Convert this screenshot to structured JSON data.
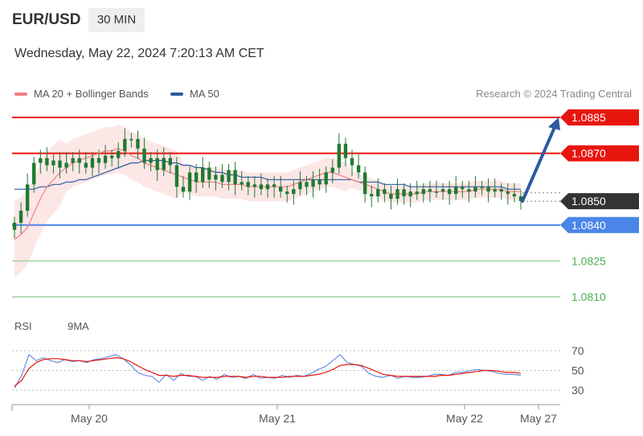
{
  "header": {
    "symbol": "EUR/USD",
    "timeframe": "30 MIN",
    "datetime": "Wednesday, May 22, 2024 7:20:13 AM CET",
    "credit": "Research © 2024 Trading Central"
  },
  "legend": {
    "ma20": "MA 20 + Bollinger Bands",
    "ma50": "MA 50",
    "rsi": "RSI",
    "rsi_ma": "9MA"
  },
  "colors": {
    "ma20": "#f08080",
    "ma50": "#2d5aa0",
    "bands_fill": "#fde3e3",
    "resistance": "#e8150f",
    "support": "#4a86e8",
    "target_green": "#4caf50",
    "last_price": "#333333",
    "arrow": "#2d5aa0",
    "candle": "#1f7a2f",
    "rsi": "#6a8fe0",
    "rsi_ma": "#e8150f"
  },
  "chart_data": [
    {
      "type": "candlestick",
      "title": "",
      "x_labels": [
        "May 20",
        "May 21",
        "May 22",
        "May 27"
      ],
      "ylim": [
        1.08,
        1.0895
      ],
      "levels": [
        {
          "label": "1.0885",
          "value": 1.0885,
          "kind": "resistance"
        },
        {
          "label": "1.0870",
          "value": 1.087,
          "kind": "resistance"
        },
        {
          "label": "1.0850",
          "value": 1.085,
          "kind": "last"
        },
        {
          "label": "1.0840",
          "value": 1.084,
          "kind": "support"
        },
        {
          "label": "1.0825",
          "value": 1.0825,
          "kind": "target"
        },
        {
          "label": "1.0810",
          "value": 1.081,
          "kind": "target"
        }
      ],
      "close": [
        1.0841,
        1.0846,
        1.0857,
        1.0866,
        1.0868,
        1.0865,
        1.0867,
        1.0864,
        1.0866,
        1.0868,
        1.0866,
        1.0864,
        1.0868,
        1.0866,
        1.0869,
        1.0868,
        1.0871,
        1.0876,
        1.0876,
        1.0872,
        1.0866,
        1.0868,
        1.0863,
        1.0868,
        1.0865,
        1.0856,
        1.0854,
        1.0862,
        1.0858,
        1.0864,
        1.0859,
        1.0861,
        1.0858,
        1.0863,
        1.0857,
        1.0858,
        1.0856,
        1.0857,
        1.0855,
        1.0857,
        1.0856,
        1.0854,
        1.0853,
        1.0855,
        1.0858,
        1.0856,
        1.0859,
        1.0857,
        1.0862,
        1.0864,
        1.0874,
        1.0868,
        1.0865,
        1.0862,
        1.0853,
        1.0852,
        1.0855,
        1.0853,
        1.0851,
        1.0855,
        1.0852,
        1.0854,
        1.0853,
        1.0855,
        1.0854,
        1.0854,
        1.0855,
        1.0853,
        1.0856,
        1.0855,
        1.0854,
        1.0856,
        1.0856,
        1.0854,
        1.0855,
        1.0854,
        1.0853,
        1.0852,
        1.085
      ],
      "ma20": [
        1.0834,
        1.0836,
        1.0839,
        1.0845,
        1.0851,
        1.0856,
        1.0859,
        1.0862,
        1.0864,
        1.0866,
        1.0867,
        1.0868,
        1.0869,
        1.087,
        1.0871,
        1.0871,
        1.0872,
        1.0871,
        1.0869,
        1.0868,
        1.0866,
        1.0865,
        1.0864,
        1.0863,
        1.0862,
        1.0861,
        1.086,
        1.0859,
        1.0858,
        1.0858,
        1.0858,
        1.0858,
        1.0857,
        1.0857,
        1.0857,
        1.0857,
        1.0856,
        1.0856,
        1.0856,
        1.0856,
        1.0856,
        1.0856,
        1.0856,
        1.0857,
        1.0858,
        1.0859,
        1.086,
        1.0861,
        1.0862,
        1.0862,
        1.0861,
        1.086,
        1.0859,
        1.0858,
        1.0857,
        1.0856,
        1.0855,
        1.0854,
        1.0853,
        1.0853,
        1.0853,
        1.0853,
        1.0853,
        1.0854,
        1.0854,
        1.0854,
        1.0854,
        1.0854,
        1.0854,
        1.0854,
        1.0854,
        1.0855,
        1.0855,
        1.0855,
        1.0855,
        1.0855,
        1.0854,
        1.0854,
        1.0854
      ],
      "ma50": [
        1.0855,
        1.0855,
        1.0855,
        1.0855,
        1.0856,
        1.0856,
        1.0857,
        1.0857,
        1.0858,
        1.0858,
        1.0859,
        1.0859,
        1.086,
        1.0861,
        1.0862,
        1.0863,
        1.0864,
        1.0865,
        1.0866,
        1.0866,
        1.0867,
        1.0867,
        1.0867,
        1.0867,
        1.0866,
        1.0866,
        1.0865,
        1.0865,
        1.0864,
        1.0864,
        1.0863,
        1.0862,
        1.0862,
        1.0861,
        1.0861,
        1.086,
        1.086,
        1.086,
        1.086,
        1.0859,
        1.0859,
        1.0859,
        1.0859,
        1.0859,
        1.0859,
        1.0859,
        1.0859,
        1.0859,
        1.0859,
        1.0859,
        1.0859,
        1.0859,
        1.0859,
        1.0858,
        1.0858,
        1.0858,
        1.0858,
        1.0857,
        1.0857,
        1.0857,
        1.0857,
        1.0856,
        1.0856,
        1.0856,
        1.0856,
        1.0856,
        1.0856,
        1.0856,
        1.0856,
        1.0856,
        1.0856,
        1.0856,
        1.0856,
        1.0856,
        1.0856,
        1.0856,
        1.0855,
        1.0855,
        1.0855
      ]
    },
    {
      "type": "line",
      "title": "",
      "ylim": [
        25,
        75
      ],
      "yticks": [
        "70",
        "50",
        "30"
      ],
      "series": [
        {
          "name": "RSI",
          "values": [
            32,
            45,
            66,
            60,
            63,
            60,
            58,
            61,
            59,
            60,
            58,
            61,
            62,
            64,
            66,
            62,
            56,
            48,
            45,
            44,
            38,
            46,
            40,
            47,
            44,
            44,
            40,
            44,
            41,
            46,
            43,
            44,
            42,
            46,
            42,
            43,
            42,
            45,
            43,
            45,
            44,
            47,
            51,
            54,
            60,
            66,
            58,
            56,
            54,
            47,
            44,
            43,
            45,
            42,
            44,
            43,
            43,
            44,
            46,
            46,
            45,
            48,
            48,
            50,
            51,
            50,
            49,
            47,
            46,
            46,
            45
          ]
        },
        {
          "name": "9MA",
          "values": [
            34,
            40,
            52,
            58,
            61,
            62,
            62,
            61,
            60,
            60,
            59,
            60,
            61,
            62,
            63,
            62,
            59,
            55,
            51,
            48,
            45,
            45,
            44,
            45,
            45,
            44,
            43,
            43,
            43,
            44,
            44,
            44,
            43,
            44,
            44,
            43,
            43,
            43,
            44,
            44,
            44,
            45,
            46,
            48,
            51,
            55,
            56,
            56,
            55,
            52,
            49,
            46,
            45,
            44,
            44,
            44,
            44,
            44,
            44,
            45,
            45,
            46,
            47,
            48,
            49,
            50,
            50,
            49,
            48,
            48,
            47
          ]
        }
      ]
    }
  ]
}
